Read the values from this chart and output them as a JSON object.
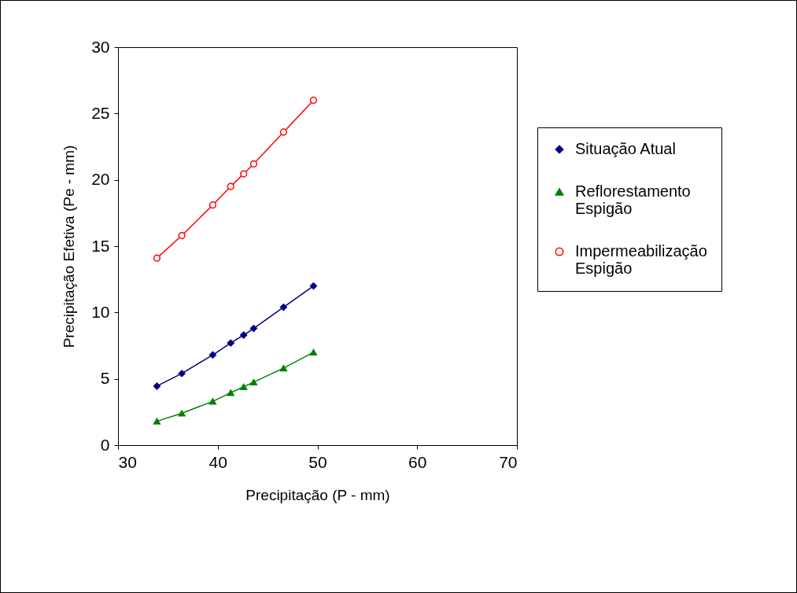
{
  "chart_data": {
    "type": "line",
    "xlabel": "Precipitação (P - mm)",
    "ylabel": "Precipitação Efetiva (Pe - mm)",
    "x": [
      33.9,
      36.4,
      39.5,
      41.3,
      42.6,
      43.6,
      46.6,
      49.6
    ],
    "series": [
      {
        "name": "Situação Atual",
        "color": "#000080",
        "marker": "diamond",
        "values": [
          4.45,
          5.4,
          6.8,
          7.7,
          8.3,
          8.8,
          10.4,
          12.0
        ]
      },
      {
        "name": "Reflorestamento Espigão",
        "color": "#008000",
        "marker": "triangle",
        "values": [
          1.8,
          2.4,
          3.3,
          3.95,
          4.4,
          4.75,
          5.8,
          7.0
        ]
      },
      {
        "name": "Impermeabilização Espigão",
        "color": "#ff0000",
        "marker": "circle",
        "values": [
          14.1,
          15.8,
          18.1,
          19.5,
          20.45,
          21.2,
          23.6,
          26.0
        ]
      }
    ],
    "xlim": [
      30,
      70
    ],
    "xticks": [
      30,
      40,
      50,
      60,
      70
    ],
    "ylim": [
      0,
      30
    ],
    "yticks": [
      0,
      5,
      10,
      15,
      20,
      25,
      30
    ],
    "grid": false,
    "legend": "right",
    "line_style": "solid"
  }
}
